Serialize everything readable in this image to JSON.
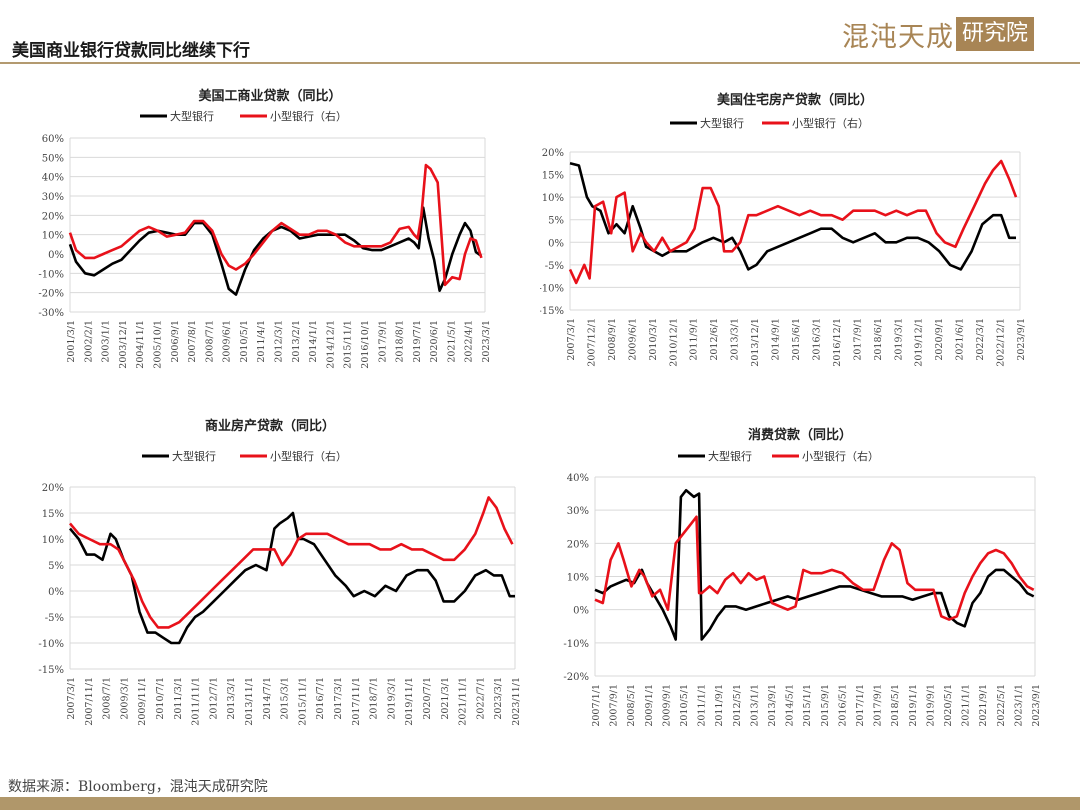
{
  "header": {
    "title": "美国商业银行贷款同比继续下行",
    "logo_text": "混沌天成",
    "logo_box": "研究院"
  },
  "footer": {
    "source": "数据来源：Bloomberg，混沌天成研究院"
  },
  "colors": {
    "large": "#000000",
    "small": "#e8111a",
    "gold": "#a88555"
  },
  "chart_data": [
    {
      "id": "ci",
      "type": "line",
      "title": "美国工商业贷款（同比）",
      "legend": [
        "大型银行",
        "小型银行（右）"
      ],
      "legend_position": "top",
      "grid": true,
      "yticks": [
        "60%",
        "50%",
        "40%",
        "30%",
        "20%",
        "10%",
        "0%",
        "-10%",
        "-20%",
        "-30%"
      ],
      "ylim": [
        -30,
        60
      ],
      "xticks": [
        "2001/3/1",
        "2002/2/1",
        "2003/1/1",
        "2003/12/1",
        "2004/11/1",
        "2005/10/1",
        "2006/9/1",
        "2007/8/1",
        "2008/7/1",
        "2009/6/1",
        "2010/5/1",
        "2011/4/1",
        "2012/3/1",
        "2013/2/1",
        "2014/1/1",
        "2014/12/1",
        "2015/11/1",
        "2016/10/1",
        "2017/9/1",
        "2018/8/1",
        "2019/7/1",
        "2020/6/1",
        "2021/5/1",
        "2022/4/1",
        "2023/3/1"
      ],
      "xlim": [
        2001.17,
        2024.0
      ],
      "series": [
        {
          "name": "大型银行",
          "x": [
            2001.17,
            2001.5,
            2002.0,
            2002.5,
            2003.0,
            2003.5,
            2004.0,
            2004.5,
            2005.0,
            2005.5,
            2006.0,
            2006.5,
            2007.0,
            2007.5,
            2008.0,
            2008.5,
            2009.0,
            2009.5,
            2009.9,
            2010.3,
            2010.8,
            2011.3,
            2011.8,
            2012.3,
            2012.8,
            2013.3,
            2013.8,
            2014.3,
            2014.8,
            2015.3,
            2015.8,
            2016.3,
            2016.8,
            2017.3,
            2017.8,
            2018.3,
            2018.8,
            2019.3,
            2019.8,
            2020.1,
            2020.35,
            2020.6,
            2020.9,
            2021.2,
            2021.5,
            2021.8,
            2022.2,
            2022.6,
            2022.9,
            2023.2,
            2023.5,
            2023.8
          ],
          "y": [
            5,
            -4,
            -10,
            -11,
            -8,
            -5,
            -3,
            2,
            7,
            11,
            12,
            11,
            10,
            10,
            16,
            16,
            10,
            -5,
            -18,
            -21,
            -8,
            2,
            8,
            12,
            14,
            12,
            8,
            9,
            10,
            10,
            10,
            10,
            7,
            3,
            2,
            2,
            4,
            6,
            8,
            6,
            3,
            24,
            8,
            -3,
            -19,
            -13,
            0,
            10,
            16,
            12,
            1,
            -1
          ]
        },
        {
          "name": "小型银行（右）",
          "x": [
            2001.17,
            2001.5,
            2002.0,
            2002.5,
            2003.0,
            2003.5,
            2004.0,
            2004.5,
            2005.0,
            2005.5,
            2006.0,
            2006.5,
            2007.0,
            2007.5,
            2008.0,
            2008.5,
            2009.0,
            2009.5,
            2009.9,
            2010.3,
            2010.8,
            2011.3,
            2011.8,
            2012.3,
            2012.8,
            2013.3,
            2013.8,
            2014.3,
            2014.8,
            2015.3,
            2015.8,
            2016.3,
            2016.8,
            2017.3,
            2017.8,
            2018.3,
            2018.8,
            2019.3,
            2019.8,
            2020.1,
            2020.3,
            2020.5,
            2020.75,
            2021.0,
            2021.4,
            2021.8,
            2022.2,
            2022.6,
            2022.9,
            2023.2,
            2023.5,
            2023.8
          ],
          "y": [
            11,
            2,
            -2,
            -2,
            0,
            2,
            4,
            8,
            12,
            14,
            12,
            9,
            10,
            11,
            17,
            17,
            12,
            0,
            -6,
            -8,
            -5,
            0,
            6,
            12,
            16,
            13,
            10,
            10,
            12,
            12,
            10,
            6,
            4,
            4,
            4,
            4,
            6,
            13,
            14,
            10,
            8,
            20,
            46,
            44,
            37,
            -16,
            -12,
            -13,
            0,
            8,
            7,
            -2
          ]
        }
      ]
    },
    {
      "id": "re",
      "type": "line",
      "title": "美国住宅房产贷款（同比）",
      "legend": [
        "大型银行",
        "小型银行（右）"
      ],
      "legend_position": "top",
      "grid": true,
      "yticks": [
        "20%",
        "15%",
        "10%",
        "5%",
        "0%",
        "-5%",
        "-10%",
        "-15%"
      ],
      "ylim": [
        -15,
        20
      ],
      "xticks": [
        "2007/3/1",
        "2007/12/1",
        "2008/9/1",
        "2009/6/1",
        "2010/3/1",
        "2010/12/1",
        "2011/9/1",
        "2012/6/1",
        "2013/3/1",
        "2013/12/1",
        "2014/9/1",
        "2015/6/1",
        "2016/3/1",
        "2016/12/1",
        "2017/9/1",
        "2018/6/1",
        "2019/3/1",
        "2019/12/1",
        "2020/9/1",
        "2021/6/1",
        "2022/3/1",
        "2022/12/1",
        "2023/9/1"
      ],
      "xlim": [
        2007.17,
        2023.9
      ],
      "series": [
        {
          "name": "大型银行",
          "x": [
            2007.17,
            2007.5,
            2007.8,
            2008.0,
            2008.3,
            2008.6,
            2008.9,
            2009.2,
            2009.5,
            2009.8,
            2010.0,
            2010.3,
            2010.6,
            2010.9,
            2011.2,
            2011.5,
            2011.8,
            2012.1,
            2012.5,
            2012.9,
            2013.2,
            2013.5,
            2013.8,
            2014.1,
            2014.5,
            2014.9,
            2015.3,
            2015.7,
            2016.1,
            2016.5,
            2016.9,
            2017.3,
            2017.7,
            2018.1,
            2018.5,
            2018.9,
            2019.3,
            2019.7,
            2020.1,
            2020.5,
            2020.9,
            2021.3,
            2021.7,
            2022.1,
            2022.5,
            2022.9,
            2023.2,
            2023.5,
            2023.75
          ],
          "y": [
            17.5,
            17,
            10,
            8,
            7,
            2,
            4,
            2,
            8,
            3,
            -1,
            -2,
            -3,
            -2,
            -2,
            -2,
            -1,
            0,
            1,
            0,
            1,
            -2,
            -6,
            -5,
            -2,
            -1,
            0,
            1,
            2,
            3,
            3,
            1,
            0,
            1,
            2,
            0,
            0,
            1,
            1,
            0,
            -2,
            -5,
            -6,
            -2,
            4,
            6,
            6,
            1,
            1
          ]
        },
        {
          "name": "小型银行（右）",
          "x": [
            2007.17,
            2007.4,
            2007.7,
            2007.9,
            2008.1,
            2008.4,
            2008.7,
            2008.9,
            2009.2,
            2009.5,
            2009.8,
            2010.0,
            2010.3,
            2010.6,
            2010.9,
            2011.2,
            2011.5,
            2011.8,
            2012.1,
            2012.4,
            2012.7,
            2012.9,
            2013.2,
            2013.5,
            2013.8,
            2014.1,
            2014.5,
            2014.9,
            2015.3,
            2015.7,
            2016.1,
            2016.5,
            2016.9,
            2017.3,
            2017.7,
            2018.1,
            2018.5,
            2018.9,
            2019.3,
            2019.7,
            2020.1,
            2020.4,
            2020.8,
            2021.1,
            2021.5,
            2021.8,
            2022.2,
            2022.6,
            2022.9,
            2023.2,
            2023.5,
            2023.75
          ],
          "y": [
            -6,
            -9,
            -5,
            -8,
            8,
            9,
            2,
            10,
            11,
            -2,
            2,
            0,
            -2,
            1,
            -2,
            -1,
            0,
            3,
            12,
            12,
            8,
            -2,
            -2,
            0,
            6,
            6,
            7,
            8,
            7,
            6,
            7,
            6,
            6,
            5,
            7,
            7,
            7,
            6,
            7,
            6,
            7,
            7,
            2,
            0,
            -1,
            3,
            8,
            13,
            16,
            18,
            14,
            10
          ]
        }
      ]
    },
    {
      "id": "cre",
      "type": "line",
      "title": "商业房产贷款（同比）",
      "legend": [
        "大型银行",
        "小型银行（右）"
      ],
      "legend_position": "top",
      "grid": true,
      "yticks": [
        "20%",
        "15%",
        "10%",
        "5%",
        "0%",
        "-5%",
        "-10%",
        "-15%"
      ],
      "ylim": [
        -15,
        20
      ],
      "xticks": [
        "2007/3/1",
        "2007/11/1",
        "2008/7/1",
        "2009/3/1",
        "2009/11/1",
        "2010/7/1",
        "2011/3/1",
        "2011/11/1",
        "2012/7/1",
        "2013/3/1",
        "2013/11/1",
        "2014/7/1",
        "2015/3/1",
        "2015/11/1",
        "2016/7/1",
        "2017/3/1",
        "2017/11/1",
        "2018/7/1",
        "2019/3/1",
        "2019/11/1",
        "2020/7/1",
        "2021/3/1",
        "2021/11/1",
        "2022/7/1",
        "2023/3/1",
        "2023/11/1"
      ],
      "xlim": [
        2007.17,
        2024.0
      ],
      "series": [
        {
          "name": "大型银行",
          "x": [
            2007.17,
            2007.5,
            2007.8,
            2008.1,
            2008.4,
            2008.7,
            2008.9,
            2009.2,
            2009.5,
            2009.8,
            2010.1,
            2010.4,
            2010.7,
            2011.0,
            2011.3,
            2011.6,
            2011.9,
            2012.2,
            2012.6,
            2013.0,
            2013.4,
            2013.8,
            2014.2,
            2014.6,
            2014.9,
            2015.1,
            2015.4,
            2015.6,
            2015.8,
            2016.0,
            2016.4,
            2016.8,
            2017.2,
            2017.6,
            2017.9,
            2018.3,
            2018.7,
            2019.1,
            2019.5,
            2019.9,
            2020.3,
            2020.7,
            2021.0,
            2021.3,
            2021.7,
            2022.1,
            2022.5,
            2022.9,
            2023.2,
            2023.5,
            2023.8,
            2024.0
          ],
          "y": [
            12,
            10,
            7,
            7,
            6,
            11,
            10,
            6,
            3,
            -4,
            -8,
            -8,
            -9,
            -10,
            -10,
            -7,
            -5,
            -4,
            -2,
            0,
            2,
            4,
            5,
            4,
            12,
            13,
            14,
            15,
            10,
            10,
            9,
            6,
            3,
            1,
            -1,
            0,
            -1,
            1,
            0,
            3,
            4,
            4,
            2,
            -2,
            -2,
            0,
            3,
            4,
            3,
            3,
            -1,
            -1
          ]
        },
        {
          "name": "小型银行（右）",
          "x": [
            2007.17,
            2007.5,
            2007.9,
            2008.3,
            2008.7,
            2009.0,
            2009.3,
            2009.6,
            2009.9,
            2010.2,
            2010.5,
            2010.9,
            2011.3,
            2011.7,
            2012.1,
            2012.5,
            2012.9,
            2013.3,
            2013.7,
            2014.1,
            2014.5,
            2014.9,
            2015.2,
            2015.5,
            2015.8,
            2016.1,
            2016.5,
            2016.9,
            2017.3,
            2017.7,
            2018.1,
            2018.5,
            2018.9,
            2019.3,
            2019.7,
            2020.1,
            2020.5,
            2020.9,
            2021.3,
            2021.7,
            2022.1,
            2022.5,
            2022.8,
            2023.0,
            2023.3,
            2023.6,
            2023.9
          ],
          "y": [
            13,
            11,
            10,
            9,
            9,
            8,
            5,
            2,
            -2,
            -5,
            -7,
            -7,
            -6,
            -4,
            -2,
            0,
            2,
            4,
            6,
            8,
            8,
            8,
            5,
            7,
            10,
            11,
            11,
            11,
            10,
            9,
            9,
            9,
            8,
            8,
            9,
            8,
            8,
            7,
            6,
            6,
            8,
            11,
            15,
            18,
            16,
            12,
            9
          ]
        }
      ]
    },
    {
      "id": "cons",
      "type": "line",
      "title": "消费贷款（同比）",
      "legend": [
        "大型银行",
        "小型银行（右）"
      ],
      "legend_position": "top",
      "grid": true,
      "yticks": [
        "40%",
        "30%",
        "20%",
        "10%",
        "0%",
        "-10%",
        "-20%"
      ],
      "ylim": [
        -20,
        40
      ],
      "xticks": [
        "2007/1/1",
        "2007/9/1",
        "2008/5/1",
        "2009/1/1",
        "2009/9/1",
        "2010/5/1",
        "2011/1/1",
        "2011/9/1",
        "2012/5/1",
        "2013/1/1",
        "2013/9/1",
        "2014/5/1",
        "2015/1/1",
        "2015/9/1",
        "2016/5/1",
        "2017/1/1",
        "2017/9/1",
        "2018/5/1",
        "2019/1/1",
        "2019/9/1",
        "2020/5/1",
        "2021/1/1",
        "2021/9/1",
        "2022/5/1",
        "2023/1/1",
        "2023/9/1"
      ],
      "xlim": [
        2007.0,
        2023.9
      ],
      "series": [
        {
          "name": "大型银行",
          "x": [
            2007.0,
            2007.3,
            2007.6,
            2007.9,
            2008.2,
            2008.5,
            2008.8,
            2009.0,
            2009.3,
            2009.6,
            2009.9,
            2010.1,
            2010.3,
            2010.5,
            2010.8,
            2011.0,
            2011.1,
            2011.4,
            2011.7,
            2012.0,
            2012.4,
            2012.8,
            2013.2,
            2013.6,
            2014.0,
            2014.4,
            2014.8,
            2015.2,
            2015.6,
            2016.0,
            2016.4,
            2016.8,
            2017.2,
            2017.6,
            2018.0,
            2018.4,
            2018.8,
            2019.2,
            2019.6,
            2020.0,
            2020.3,
            2020.6,
            2020.9,
            2021.2,
            2021.5,
            2021.8,
            2022.1,
            2022.4,
            2022.7,
            2023.0,
            2023.3,
            2023.6,
            2023.85
          ],
          "y": [
            6,
            5,
            7,
            8,
            9,
            8,
            12,
            8,
            4,
            0,
            -5,
            -9,
            34,
            36,
            34,
            35,
            -9,
            -6,
            -2,
            1,
            1,
            0,
            1,
            2,
            3,
            4,
            3,
            4,
            5,
            6,
            7,
            7,
            6,
            5,
            4,
            4,
            4,
            3,
            4,
            5,
            5,
            -2,
            -4,
            -5,
            2,
            5,
            10,
            12,
            12,
            10,
            8,
            5,
            4
          ]
        },
        {
          "name": "小型银行（右）",
          "x": [
            2007.0,
            2007.3,
            2007.6,
            2007.9,
            2008.1,
            2008.4,
            2008.7,
            2008.9,
            2009.2,
            2009.5,
            2009.8,
            2010.1,
            2010.3,
            2010.6,
            2010.9,
            2011.0,
            2011.1,
            2011.4,
            2011.7,
            2012.0,
            2012.3,
            2012.6,
            2012.9,
            2013.2,
            2013.5,
            2013.8,
            2014.1,
            2014.4,
            2014.7,
            2015.0,
            2015.3,
            2015.7,
            2016.1,
            2016.5,
            2016.9,
            2017.3,
            2017.7,
            2018.1,
            2018.4,
            2018.7,
            2019.0,
            2019.3,
            2019.6,
            2020.0,
            2020.3,
            2020.6,
            2020.9,
            2021.2,
            2021.5,
            2021.8,
            2022.1,
            2022.4,
            2022.7,
            2023.0,
            2023.3,
            2023.6,
            2023.85
          ],
          "y": [
            3,
            2,
            15,
            20,
            15,
            7,
            12,
            10,
            4,
            6,
            0,
            20,
            22,
            25,
            28,
            5,
            5,
            7,
            5,
            9,
            11,
            8,
            11,
            9,
            10,
            2,
            1,
            0,
            1,
            12,
            11,
            11,
            12,
            11,
            8,
            6,
            6,
            15,
            20,
            18,
            8,
            6,
            6,
            6,
            -2,
            -3,
            -2,
            5,
            10,
            14,
            17,
            18,
            17,
            14,
            10,
            7,
            6
          ]
        }
      ]
    }
  ]
}
